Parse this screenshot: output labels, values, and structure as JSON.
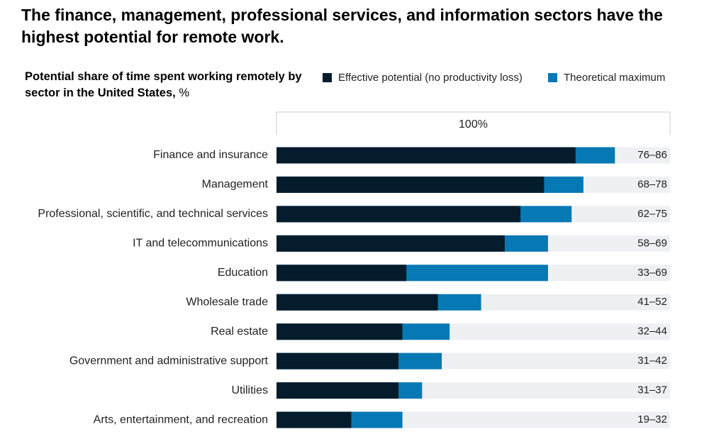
{
  "chart_data": {
    "type": "bar",
    "title": "The finance, management, professional services, and information sectors have the highest potential for remote work.",
    "subtitle": "Potential share of time spent working remotely by sector in the United States,",
    "unit": "%",
    "categories": [
      "Finance and insurance",
      "Management",
      "Professional, scientific, and technical services",
      "IT and telecommunications",
      "Education",
      "Wholesale trade",
      "Real estate",
      "Government and administrative support",
      "Utilities",
      "Arts, entertainment, and recreation"
    ],
    "series": [
      {
        "name": "Effective potential (no productivity loss)",
        "color": "#051c2c",
        "values": [
          76,
          68,
          62,
          58,
          33,
          41,
          32,
          31,
          31,
          19
        ]
      },
      {
        "name": "Theoretical maximum",
        "color": "#0679b4",
        "values": [
          86,
          78,
          75,
          69,
          69,
          52,
          44,
          42,
          37,
          32
        ]
      }
    ],
    "value_labels": [
      "76–86",
      "68–78",
      "62–75",
      "58–69",
      "33–69",
      "41–52",
      "32–44",
      "31–42",
      "31–37",
      "19–32"
    ],
    "background_color": "#eef0f2",
    "xlim": [
      0,
      100
    ],
    "xticks": [
      {
        "value": 100,
        "label": "100%"
      }
    ]
  }
}
